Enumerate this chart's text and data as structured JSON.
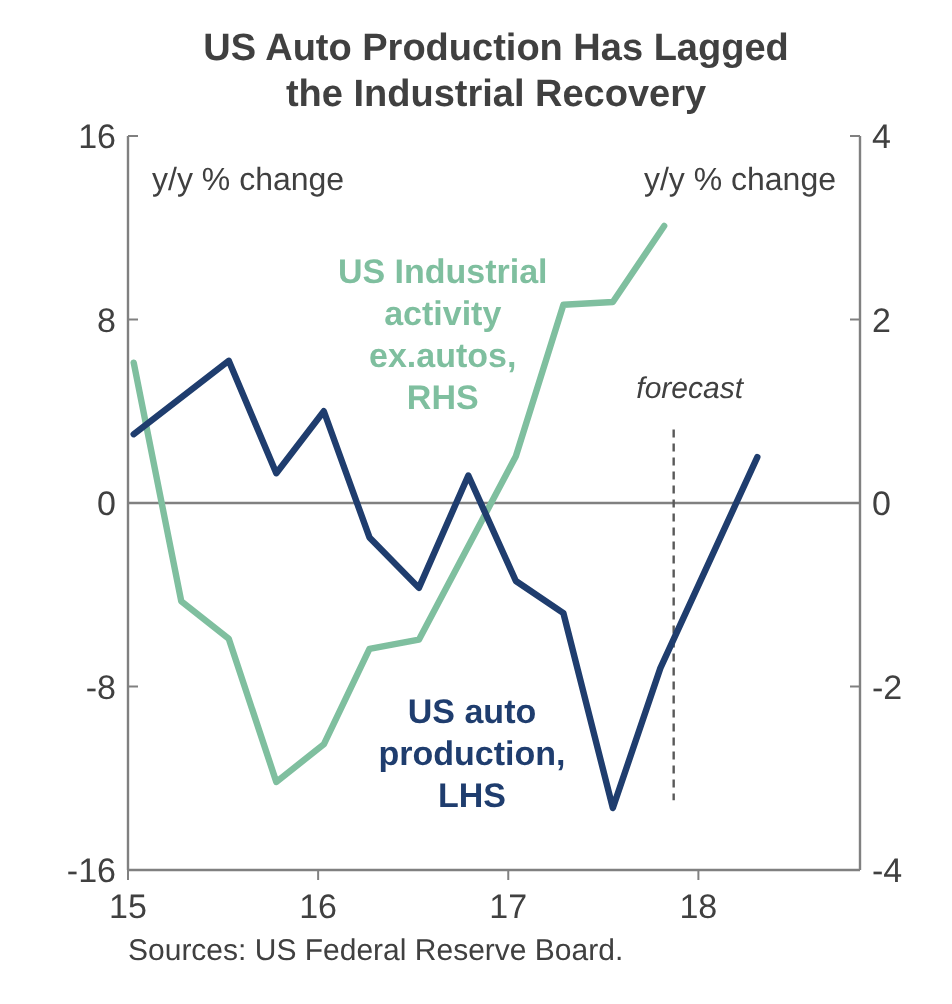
{
  "chart_data": {
    "type": "line",
    "title": "US Auto Production Has Lagged the Industrial Recovery",
    "xlim": [
      15,
      18.85
    ],
    "xticks": [
      15,
      16,
      17,
      18
    ],
    "ylim": [
      -16,
      16
    ],
    "yticks": [
      -16,
      -8,
      0,
      8,
      16
    ],
    "y2lim": [
      -4,
      4
    ],
    "y2ticks": [
      -4,
      -2,
      0,
      2,
      4
    ],
    "ylabel": "y/y % change",
    "y2label": "y/y % change",
    "grid": false,
    "line_style": "solid",
    "marker": "none",
    "ref_lines": [
      {
        "axis": "y",
        "value": 0,
        "color": "#808080",
        "line_style": "solid"
      },
      {
        "axis": "x",
        "value": 17.87,
        "label": "forecast",
        "color": "#595959",
        "line_style": "dashed"
      }
    ],
    "annotations": [
      "Sources: US Federal Reserve Board."
    ],
    "series": [
      {
        "name": "US Industrial activity ex.autos, RHS",
        "color": "#7fbf9f",
        "axis": "y2",
        "x": [
          15.03,
          15.28,
          15.53,
          15.78,
          16.03,
          16.27,
          16.53,
          17.04,
          17.29,
          17.55,
          17.82
        ],
        "values": [
          1.53,
          -1.07,
          -1.48,
          -3.04,
          -2.63,
          -1.59,
          -1.49,
          0.51,
          2.16,
          2.19,
          3.02
        ]
      },
      {
        "name": "US auto production, LHS",
        "color": "#1f3d6e",
        "x": [
          15.03,
          15.28,
          15.53,
          15.78,
          16.03,
          16.27,
          16.53,
          16.79,
          17.04,
          17.29,
          17.55,
          17.8,
          18.31
        ],
        "values": [
          3.0,
          4.6,
          6.2,
          1.3,
          4.0,
          -1.5,
          -3.7,
          1.2,
          -3.4,
          -4.8,
          -13.3,
          -7.2,
          2.0
        ]
      }
    ]
  }
}
